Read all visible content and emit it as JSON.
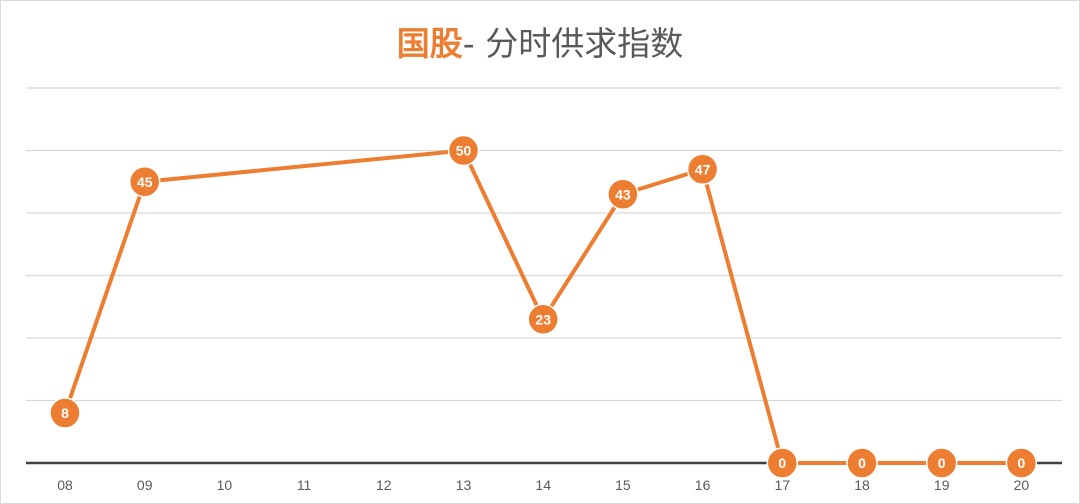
{
  "chart_data": {
    "type": "line",
    "title_highlight": "国股",
    "title_rest": "- 分时供求指数",
    "categories": [
      "08",
      "09",
      "10",
      "11",
      "12",
      "13",
      "14",
      "15",
      "16",
      "17",
      "18",
      "19",
      "20"
    ],
    "points": [
      {
        "x": "08",
        "y": 8
      },
      {
        "x": "09",
        "y": 45
      },
      {
        "x": "13",
        "y": 50
      },
      {
        "x": "14",
        "y": 23
      },
      {
        "x": "15",
        "y": 43
      },
      {
        "x": "16",
        "y": 47
      },
      {
        "x": "17",
        "y": 0
      },
      {
        "x": "18",
        "y": 0
      },
      {
        "x": "19",
        "y": 0
      },
      {
        "x": "20",
        "y": 0
      }
    ],
    "ylim": [
      0,
      60
    ],
    "y_gridlines": [
      10,
      20,
      30,
      40,
      50,
      60
    ],
    "grid": true,
    "legend": "none",
    "colors": {
      "series": "#ed7d31",
      "title_highlight": "#ed7d31",
      "title_text": "#595959",
      "grid": "#d9d9d9",
      "axis": "#404040",
      "tick_text": "#595959"
    }
  }
}
